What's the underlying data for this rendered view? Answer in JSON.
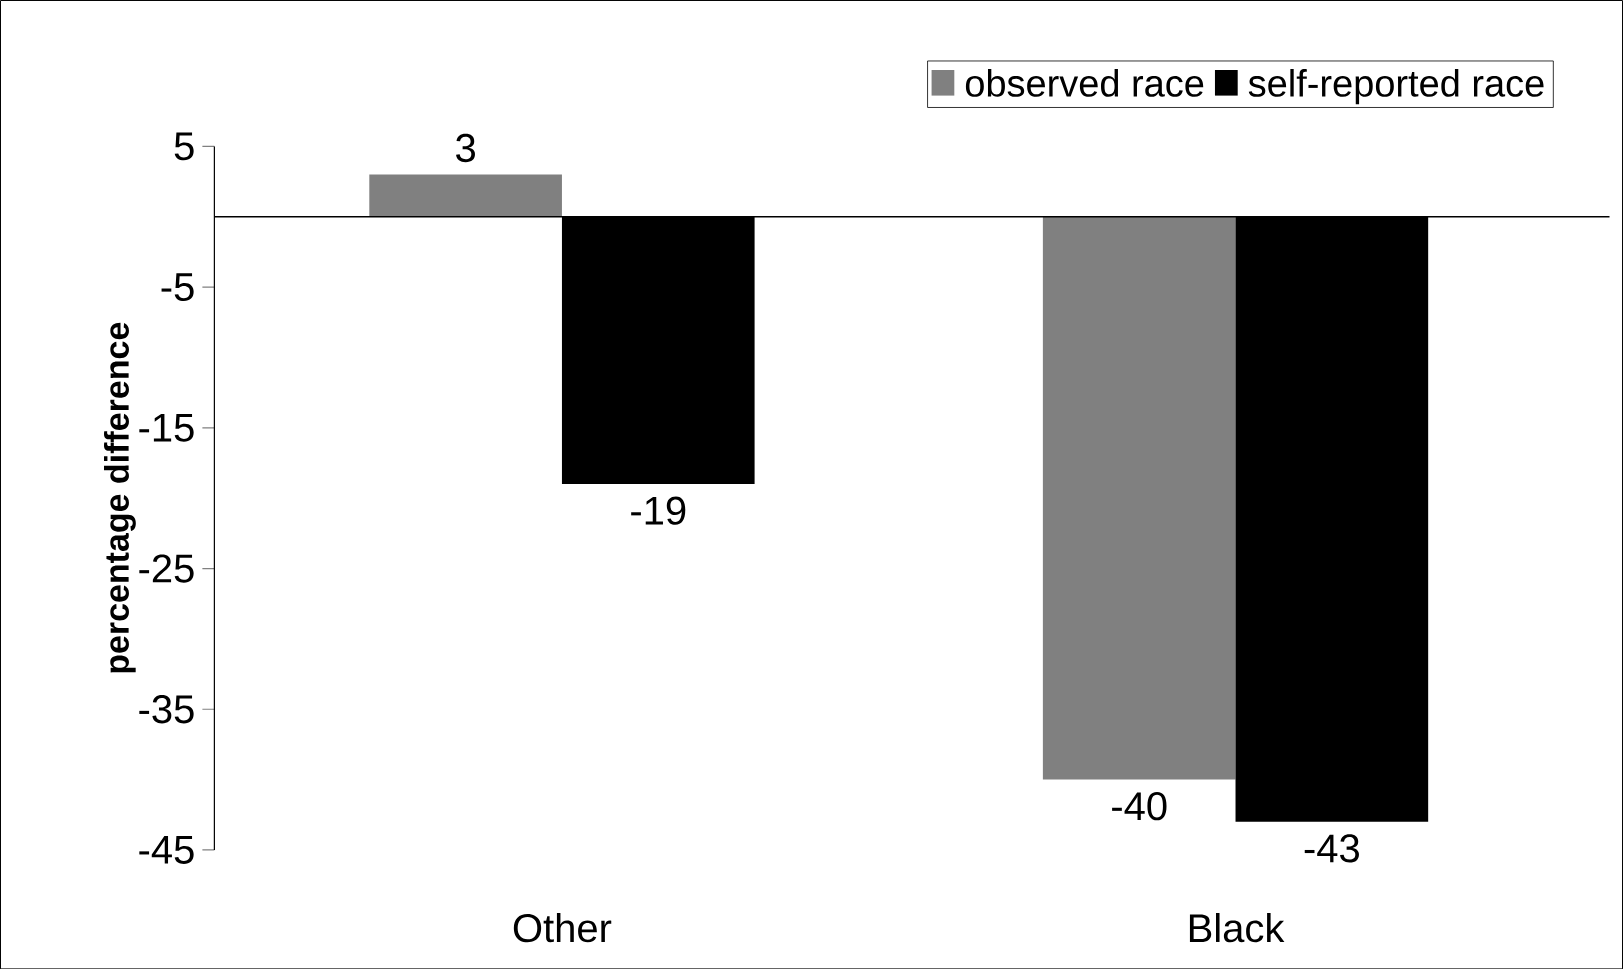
{
  "chart_data": {
    "type": "bar",
    "ylabel": "percentage difference",
    "categories": [
      "Other",
      "Black"
    ],
    "series": [
      {
        "name": "observed race",
        "color": "#808080",
        "values": [
          3,
          -40
        ]
      },
      {
        "name": "self-reported race",
        "color": "#000000",
        "values": [
          -19,
          -43
        ]
      }
    ],
    "ylim": [
      -45,
      5
    ],
    "yticks": [
      5,
      -5,
      -15,
      -25,
      -35,
      -45
    ],
    "data_labels": true,
    "legend": "top right",
    "grid": false
  }
}
